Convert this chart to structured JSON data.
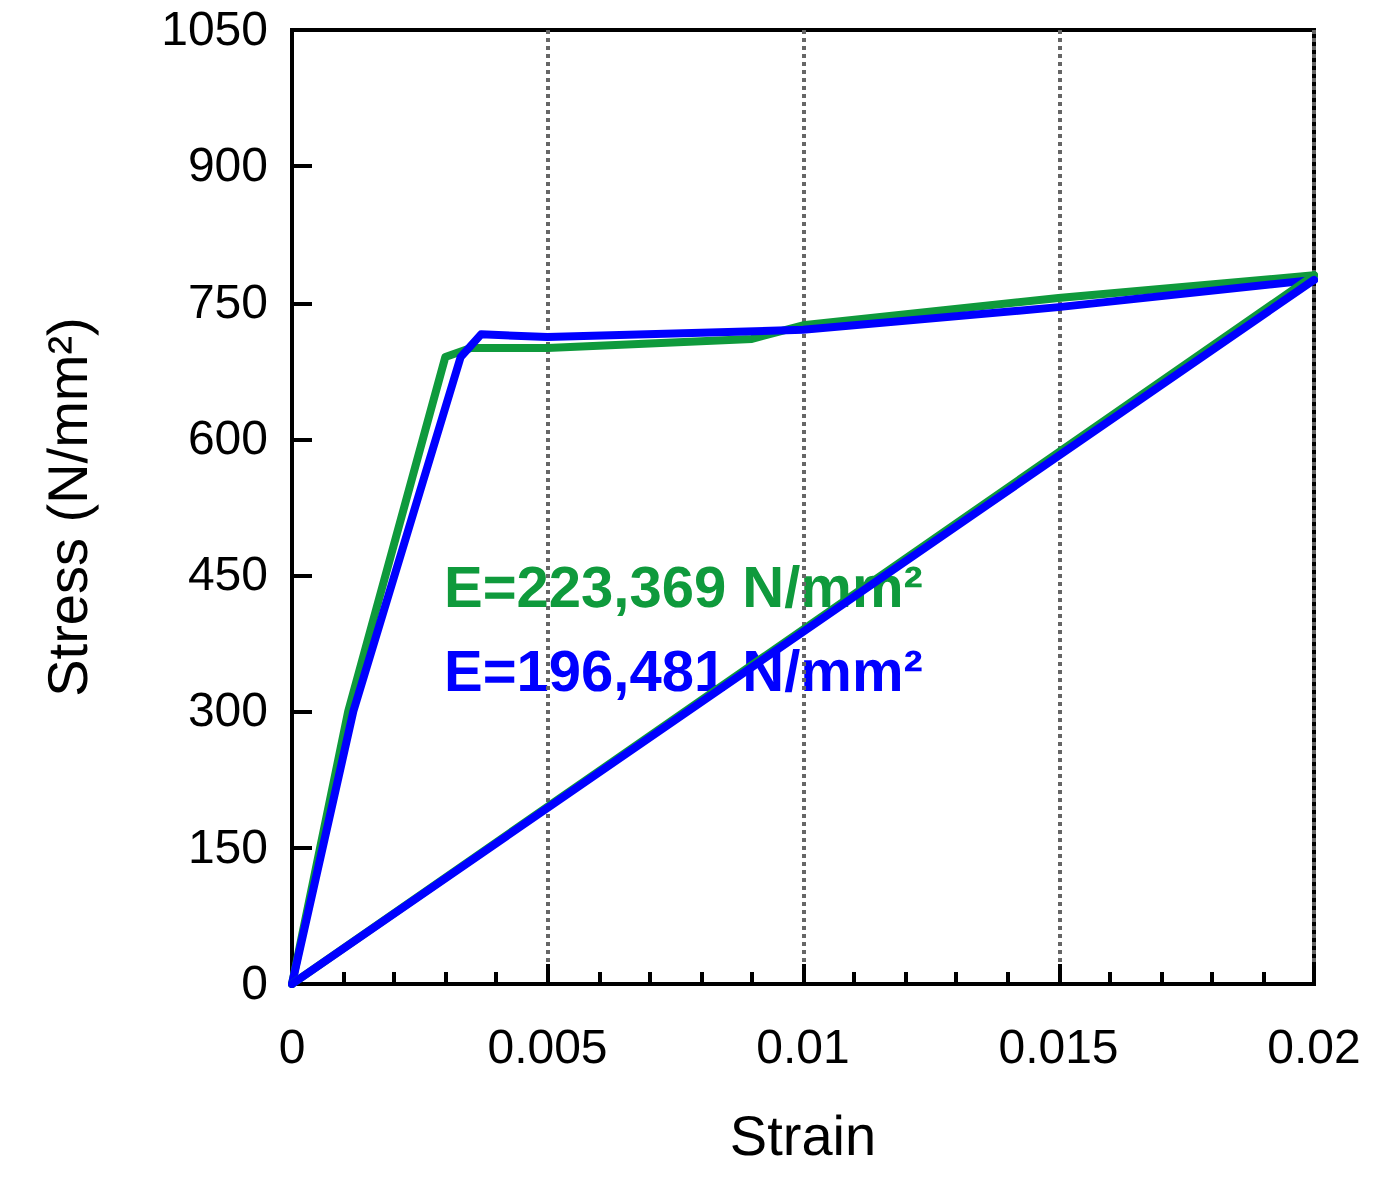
{
  "chart_data": {
    "type": "line",
    "xlabel": "Strain",
    "ylabel": "Stress (N/mm²)",
    "xlim": [
      0,
      0.02
    ],
    "xticks": [
      0,
      0.005,
      0.01,
      0.015,
      0.02
    ],
    "ylim": [
      0,
      1050
    ],
    "yticks": [
      0,
      150,
      300,
      450,
      600,
      750,
      900,
      1050
    ],
    "grid": "x",
    "line_style": "solid",
    "marker": "none",
    "annotations": [
      "E=223,369 N/mm²",
      "E=196,481 N/mm²"
    ],
    "series": [
      {
        "color": "#0f9a3c",
        "x": [
          0,
          0.0011,
          0.003,
          0.0035,
          0.005,
          0.009,
          0.01,
          0.015,
          0.02
        ],
        "values": [
          0,
          300,
          690,
          700,
          700,
          710,
          725,
          755,
          780
        ]
      },
      {
        "color": "#0000ff",
        "x": [
          0,
          0.0012,
          0.0033,
          0.0037,
          0.005,
          0.01,
          0.015,
          0.02
        ],
        "values": [
          0,
          300,
          690,
          715,
          712,
          720,
          745,
          775
        ]
      },
      {
        "color": "#0f9a3c",
        "x": [
          0,
          0.02
        ],
        "values": [
          0,
          780
        ]
      },
      {
        "color": "#0000ff",
        "x": [
          0,
          0.02
        ],
        "values": [
          0,
          775
        ]
      }
    ]
  }
}
